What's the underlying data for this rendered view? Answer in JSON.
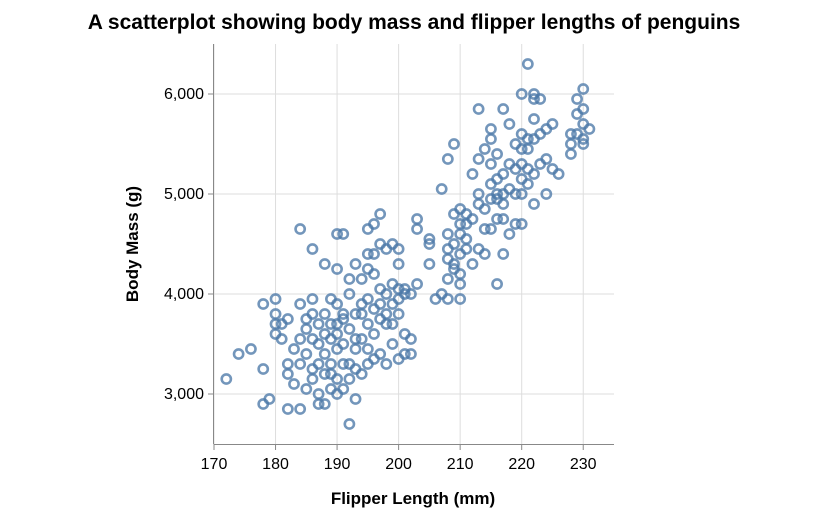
{
  "chart_data": {
    "type": "scatter",
    "title": "A scatterplot showing body mass and flipper lengths of penguins",
    "xlabel": "Flipper Length (mm)",
    "ylabel": "Body Mass (g)",
    "xlim": [
      170,
      235
    ],
    "ylim": [
      2500,
      6500
    ],
    "xticks": [
      170,
      180,
      190,
      200,
      210,
      220,
      230
    ],
    "xtick_labels": [
      "170",
      "180",
      "190",
      "200",
      "210",
      "220",
      "230"
    ],
    "yticks": [
      3000,
      4000,
      5000,
      6000
    ],
    "ytick_labels": [
      "3,000",
      "4,000",
      "5,000",
      "6,000"
    ],
    "grid": true,
    "marker": "open-circle",
    "color": "#4c78a8",
    "points": [
      [
        172,
        3150
      ],
      [
        174,
        3400
      ],
      [
        176,
        3450
      ],
      [
        178,
        3900
      ],
      [
        178,
        3250
      ],
      [
        178,
        2900
      ],
      [
        179,
        2950
      ],
      [
        180,
        3950
      ],
      [
        180,
        3800
      ],
      [
        180,
        3700
      ],
      [
        180,
        3600
      ],
      [
        181,
        3550
      ],
      [
        181,
        3700
      ],
      [
        182,
        3200
      ],
      [
        182,
        3300
      ],
      [
        182,
        3750
      ],
      [
        182,
        2850
      ],
      [
        183,
        3450
      ],
      [
        183,
        3100
      ],
      [
        184,
        3900
      ],
      [
        184,
        3550
      ],
      [
        184,
        4650
      ],
      [
        184,
        3300
      ],
      [
        184,
        2850
      ],
      [
        185,
        3750
      ],
      [
        185,
        3650
      ],
      [
        185,
        3400
      ],
      [
        185,
        3050
      ],
      [
        186,
        3950
      ],
      [
        186,
        3800
      ],
      [
        186,
        3550
      ],
      [
        186,
        3250
      ],
      [
        186,
        4450
      ],
      [
        186,
        3150
      ],
      [
        187,
        3300
      ],
      [
        187,
        3500
      ],
      [
        187,
        3700
      ],
      [
        187,
        3000
      ],
      [
        187,
        2900
      ],
      [
        188,
        3200
      ],
      [
        188,
        3400
      ],
      [
        188,
        3800
      ],
      [
        188,
        4300
      ],
      [
        188,
        3600
      ],
      [
        188,
        2900
      ],
      [
        189,
        3550
      ],
      [
        189,
        3300
      ],
      [
        189,
        3200
      ],
      [
        189,
        3700
      ],
      [
        189,
        3050
      ],
      [
        189,
        3950
      ],
      [
        190,
        3900
      ],
      [
        190,
        4250
      ],
      [
        190,
        4600
      ],
      [
        190,
        3450
      ],
      [
        190,
        3700
      ],
      [
        190,
        3600
      ],
      [
        190,
        3150
      ],
      [
        190,
        3000
      ],
      [
        191,
        3800
      ],
      [
        191,
        3500
      ],
      [
        191,
        4600
      ],
      [
        191,
        3300
      ],
      [
        191,
        3050
      ],
      [
        191,
        3750
      ],
      [
        192,
        3300
      ],
      [
        192,
        4000
      ],
      [
        192,
        3150
      ],
      [
        192,
        3650
      ],
      [
        192,
        2700
      ],
      [
        192,
        4150
      ],
      [
        193,
        3800
      ],
      [
        193,
        4300
      ],
      [
        193,
        3450
      ],
      [
        193,
        3550
      ],
      [
        193,
        3250
      ],
      [
        193,
        2950
      ],
      [
        194,
        3200
      ],
      [
        194,
        3800
      ],
      [
        194,
        4150
      ],
      [
        194,
        3900
      ],
      [
        194,
        3550
      ],
      [
        195,
        4400
      ],
      [
        195,
        3700
      ],
      [
        195,
        3450
      ],
      [
        195,
        3300
      ],
      [
        195,
        4650
      ],
      [
        195,
        4250
      ],
      [
        195,
        3950
      ],
      [
        196,
        4700
      ],
      [
        196,
        4200
      ],
      [
        196,
        3850
      ],
      [
        196,
        3600
      ],
      [
        196,
        3350
      ],
      [
        196,
        4400
      ],
      [
        197,
        4500
      ],
      [
        197,
        3900
      ],
      [
        197,
        3750
      ],
      [
        197,
        3400
      ],
      [
        197,
        4050
      ],
      [
        197,
        4800
      ],
      [
        198,
        4450
      ],
      [
        198,
        3700
      ],
      [
        198,
        3800
      ],
      [
        198,
        3300
      ],
      [
        198,
        4000
      ],
      [
        199,
        4500
      ],
      [
        199,
        3900
      ],
      [
        199,
        3700
      ],
      [
        199,
        3500
      ],
      [
        199,
        4100
      ],
      [
        200,
        3350
      ],
      [
        200,
        3800
      ],
      [
        200,
        4050
      ],
      [
        200,
        3950
      ],
      [
        200,
        4450
      ],
      [
        200,
        4300
      ],
      [
        201,
        3400
      ],
      [
        201,
        4000
      ],
      [
        201,
        3600
      ],
      [
        201,
        4050
      ],
      [
        202,
        3550
      ],
      [
        202,
        3400
      ],
      [
        202,
        4000
      ],
      [
        203,
        4100
      ],
      [
        203,
        4750
      ],
      [
        203,
        4650
      ],
      [
        205,
        4500
      ],
      [
        205,
        4550
      ],
      [
        205,
        4300
      ],
      [
        206,
        3950
      ],
      [
        207,
        4000
      ],
      [
        207,
        5050
      ],
      [
        208,
        4600
      ],
      [
        208,
        4350
      ],
      [
        208,
        5350
      ],
      [
        208,
        4150
      ],
      [
        208,
        3950
      ],
      [
        209,
        4500
      ],
      [
        209,
        4300
      ],
      [
        209,
        4800
      ],
      [
        209,
        5500
      ],
      [
        209,
        4250
      ],
      [
        210,
        4100
      ],
      [
        210,
        4700
      ],
      [
        210,
        4400
      ],
      [
        210,
        4600
      ],
      [
        210,
        3950
      ],
      [
        210,
        4200
      ],
      [
        210,
        4850
      ],
      [
        211,
        4800
      ],
      [
        211,
        4550
      ],
      [
        211,
        4700
      ],
      [
        211,
        4450
      ],
      [
        212,
        5200
      ],
      [
        212,
        4750
      ],
      [
        212,
        4300
      ],
      [
        213,
        4900
      ],
      [
        213,
        5350
      ],
      [
        213,
        5850
      ],
      [
        213,
        4450
      ],
      [
        213,
        5000
      ],
      [
        214,
        4850
      ],
      [
        214,
        4650
      ],
      [
        214,
        4400
      ],
      [
        214,
        5450
      ],
      [
        215,
        4950
      ],
      [
        215,
        5100
      ],
      [
        215,
        5650
      ],
      [
        215,
        5300
      ],
      [
        215,
        4650
      ],
      [
        215,
        5550
      ],
      [
        216,
        5000
      ],
      [
        216,
        4750
      ],
      [
        216,
        4100
      ],
      [
        216,
        5150
      ],
      [
        216,
        4950
      ],
      [
        216,
        5400
      ],
      [
        217,
        4750
      ],
      [
        217,
        5200
      ],
      [
        217,
        5850
      ],
      [
        217,
        4900
      ],
      [
        217,
        4400
      ],
      [
        217,
        5000
      ],
      [
        218,
        5700
      ],
      [
        218,
        5300
      ],
      [
        218,
        4600
      ],
      [
        218,
        5050
      ],
      [
        219,
        5500
      ],
      [
        219,
        5250
      ],
      [
        219,
        4700
      ],
      [
        219,
        5000
      ],
      [
        220,
        5300
      ],
      [
        220,
        5600
      ],
      [
        220,
        6000
      ],
      [
        220,
        4700
      ],
      [
        220,
        5150
      ],
      [
        220,
        5450
      ],
      [
        220,
        5000
      ],
      [
        221,
        6300
      ],
      [
        221,
        5450
      ],
      [
        221,
        5100
      ],
      [
        221,
        5250
      ],
      [
        221,
        5550
      ],
      [
        222,
        5950
      ],
      [
        222,
        5750
      ],
      [
        222,
        5200
      ],
      [
        222,
        4900
      ],
      [
        222,
        5550
      ],
      [
        222,
        6000
      ],
      [
        223,
        5300
      ],
      [
        223,
        5600
      ],
      [
        223,
        5950
      ],
      [
        224,
        5650
      ],
      [
        224,
        5350
      ],
      [
        224,
        5000
      ],
      [
        225,
        5700
      ],
      [
        225,
        5250
      ],
      [
        226,
        5200
      ],
      [
        228,
        5400
      ],
      [
        228,
        5600
      ],
      [
        228,
        5500
      ],
      [
        229,
        5950
      ],
      [
        229,
        5800
      ],
      [
        230,
        6050
      ],
      [
        230,
        5700
      ],
      [
        230,
        5850
      ],
      [
        230,
        5550
      ],
      [
        230,
        5500
      ],
      [
        231,
        5650
      ],
      [
        229,
        5600
      ],
      [
        208,
        4450
      ]
    ]
  }
}
